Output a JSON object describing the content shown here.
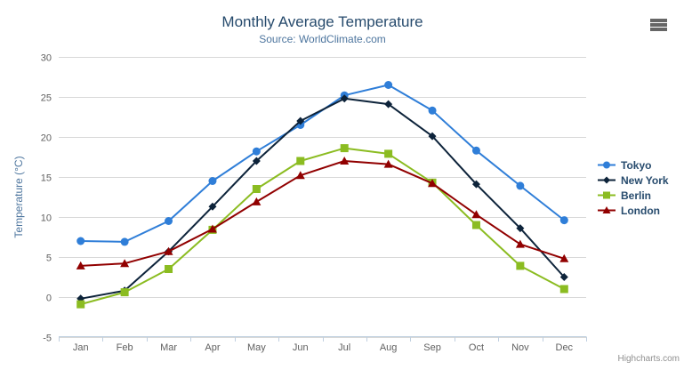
{
  "header": {
    "title": "Monthly Average Temperature",
    "subtitle": "Source: WorldClimate.com"
  },
  "chart_data": {
    "type": "line",
    "categories": [
      "Jan",
      "Feb",
      "Mar",
      "Apr",
      "May",
      "Jun",
      "Jul",
      "Aug",
      "Sep",
      "Oct",
      "Nov",
      "Dec"
    ],
    "series": [
      {
        "name": "Tokyo",
        "color": "#2f7ed8",
        "marker": "circle",
        "values": [
          7.0,
          6.9,
          9.5,
          14.5,
          18.2,
          21.5,
          25.2,
          26.5,
          23.3,
          18.3,
          13.9,
          9.6
        ]
      },
      {
        "name": "New York",
        "color": "#0d233a",
        "marker": "diamond",
        "values": [
          -0.2,
          0.8,
          5.7,
          11.3,
          17.0,
          22.0,
          24.8,
          24.1,
          20.1,
          14.1,
          8.6,
          2.5
        ]
      },
      {
        "name": "Berlin",
        "color": "#8bbc21",
        "marker": "square",
        "values": [
          -0.9,
          0.6,
          3.5,
          8.4,
          13.5,
          17.0,
          18.6,
          17.9,
          14.3,
          9.0,
          3.9,
          1.0
        ]
      },
      {
        "name": "London",
        "color": "#910000",
        "marker": "triangle",
        "values": [
          3.9,
          4.2,
          5.7,
          8.5,
          11.9,
          15.2,
          17.0,
          16.6,
          14.2,
          10.3,
          6.6,
          4.8
        ]
      }
    ],
    "xlabel": "",
    "ylabel": "Temperature (°C)",
    "ylim": [
      -5,
      30
    ],
    "y_tick_interval": 5,
    "grid": "horizontal",
    "legend_position": "right"
  },
  "colors": {
    "title": "#274b6d",
    "subtitle": "#4d759e",
    "axis_label": "#606060",
    "axis_title": "#4d759e",
    "grid": "#d8d8d8",
    "axis_line": "#c0d0e0",
    "legend_text": "#274b6d",
    "credits": "#909090",
    "background": "#ffffff",
    "menu_icon": "#666666"
  },
  "credits": {
    "text": "Highcharts.com"
  }
}
